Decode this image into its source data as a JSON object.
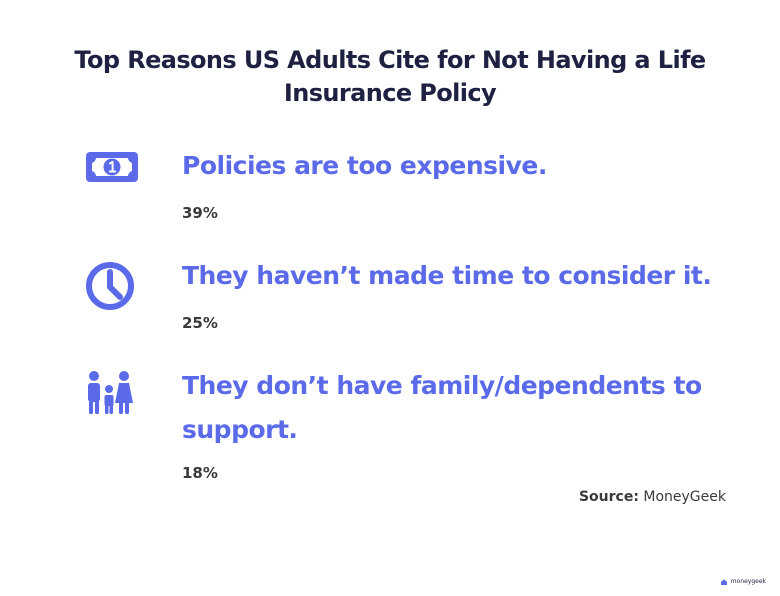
{
  "title": "Top Reasons US Adults Cite for Not Having a Life Insurance Policy",
  "items": [
    {
      "icon": "money-bill-icon",
      "text": "Policies are too expensive.",
      "percent": "39%"
    },
    {
      "icon": "clock-icon",
      "text": "They haven’t made time to consider it.",
      "percent": "25%"
    },
    {
      "icon": "family-icon",
      "text": "They don’t have family/dependents to support.",
      "percent": "18%"
    }
  ],
  "source": {
    "label": "Source:",
    "value": "MoneyGeek"
  },
  "logo": {
    "text": "moneygeek"
  },
  "colors": {
    "title": "#1f2142",
    "accent": "#5a6ae8",
    "body_text": "#3a3a3a"
  }
}
